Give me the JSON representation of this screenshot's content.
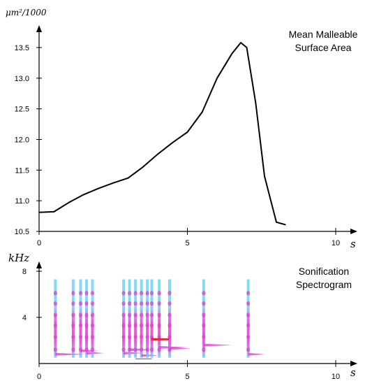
{
  "chart_data": [
    {
      "type": "line",
      "title": [
        "Mean Malleable",
        "Surface Area"
      ],
      "ylabel": "μm²/1000",
      "xlabel": "s",
      "xlim": [
        0,
        10
      ],
      "ylim": [
        10.5,
        13.75
      ],
      "x_ticks": [
        "0",
        "5",
        "10"
      ],
      "y_ticks": [
        "10.5",
        "11.0",
        "11.5",
        "12.0",
        "12.5",
        "13.0",
        "13.5"
      ],
      "grid": false,
      "series": [
        {
          "color": "#000000",
          "x": [
            0,
            0.5,
            1.0,
            1.5,
            2.0,
            2.5,
            3.0,
            3.5,
            4.0,
            4.5,
            5.0,
            5.5,
            6.0,
            6.5,
            6.8,
            7.0,
            7.3,
            7.6,
            8.0,
            8.3
          ],
          "y": [
            10.81,
            10.82,
            10.97,
            11.1,
            11.2,
            11.29,
            11.37,
            11.55,
            11.76,
            11.95,
            12.12,
            12.45,
            13.0,
            13.4,
            13.58,
            13.5,
            12.6,
            11.4,
            10.65,
            10.61
          ]
        }
      ]
    },
    {
      "type": "heatmap",
      "title": [
        "Sonification",
        "Spectrogram"
      ],
      "ylabel": "kHz",
      "xlabel": "s",
      "xlim": [
        0,
        10
      ],
      "ylim": [
        0,
        8
      ],
      "x_ticks": [
        "0",
        "5",
        "10"
      ],
      "y_ticks": [
        "4",
        "8"
      ],
      "colors": {
        "low": "#6fd3f0",
        "mid": "#e040d0",
        "high": "#e02020"
      },
      "events": [
        {
          "t": 0.55,
          "tail_to": 1.55,
          "tail_f": 0.8
        },
        {
          "t": 1.15,
          "tail_to": null,
          "tail_f": null
        },
        {
          "t": 1.4,
          "tail_to": 2.0,
          "tail_f": 1.1
        },
        {
          "t": 1.6,
          "tail_to": 2.2,
          "tail_f": 0.9
        },
        {
          "t": 1.8,
          "tail_to": null,
          "tail_f": null
        },
        {
          "t": 2.85,
          "tail_to": 3.5,
          "tail_f": 0.9
        },
        {
          "t": 3.05,
          "tail_to": 3.8,
          "tail_f": 1.2
        },
        {
          "t": 3.25,
          "tail_to": null,
          "tail_f": null
        },
        {
          "t": 3.45,
          "tail_to": 4.0,
          "tail_f": 0.7
        },
        {
          "t": 3.65,
          "tail_to": null,
          "tail_f": null
        },
        {
          "t": 3.8,
          "tail_to": 4.5,
          "tail_f": 2.1
        },
        {
          "t": 4.05,
          "tail_to": 5.0,
          "tail_f": 1.4
        },
        {
          "t": 4.4,
          "tail_to": 5.1,
          "tail_f": 1.3
        },
        {
          "t": 5.55,
          "tail_to": 6.5,
          "tail_f": 1.6
        },
        {
          "t": 7.05,
          "tail_to": 7.6,
          "tail_f": 0.8
        }
      ]
    }
  ]
}
